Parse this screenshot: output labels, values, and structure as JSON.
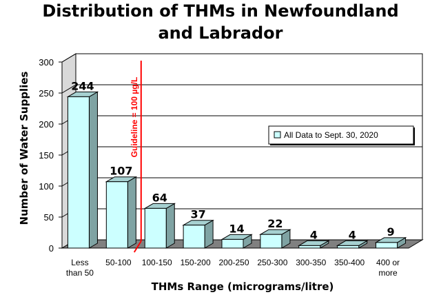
{
  "chart_data": {
    "type": "bar",
    "title_line1": "Distribution of THMs in Newfoundland",
    "title_line2": "and Labrador",
    "xlabel": "THMs Range (micrograms/litre)",
    "ylabel": "Number of Water Supplies",
    "categories": [
      [
        "Less",
        "than 50"
      ],
      [
        "50-100"
      ],
      [
        "100-150"
      ],
      [
        "150-200"
      ],
      [
        "200-250"
      ],
      [
        "250-300"
      ],
      [
        "300-350"
      ],
      [
        "350-400"
      ],
      [
        "400 or",
        "more"
      ]
    ],
    "series": [
      {
        "name": "All Data to Sept. 30, 2020",
        "values": [
          244,
          107,
          64,
          37,
          14,
          22,
          4,
          4,
          9
        ]
      }
    ],
    "ylim": [
      0,
      300
    ],
    "yticks": [
      0,
      50,
      100,
      150,
      200,
      250,
      300
    ],
    "grid": true,
    "legend_position": "right",
    "annotation": {
      "text": "Guideline = 100 µg/L",
      "x_category_boundary": 2
    },
    "colors": {
      "bar_front": "#ccffff",
      "bar_side": "#7fa3a3",
      "bar_top": "#a6d0d0",
      "guideline": "#ff0000",
      "wall": "#ffffff",
      "floor": "#808080"
    }
  }
}
